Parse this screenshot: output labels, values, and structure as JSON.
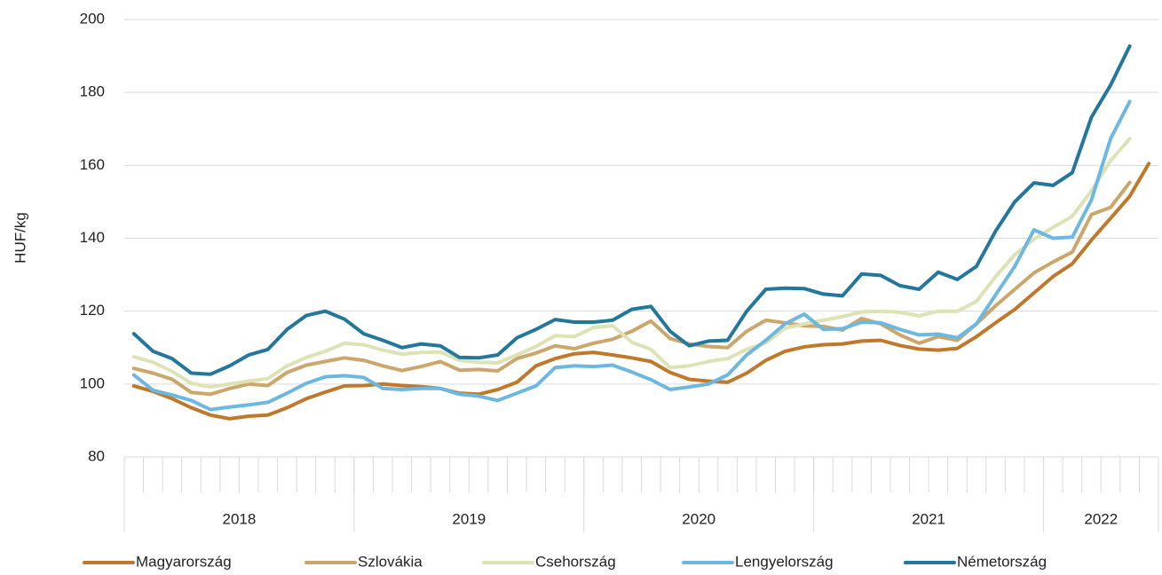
{
  "chart_data": {
    "type": "line",
    "y_label": "HUF/kg",
    "categories": [
      null,
      null,
      null,
      null,
      null,
      null,
      null,
      null,
      null,
      null,
      null,
      null,
      null,
      null,
      null,
      null,
      null,
      null,
      null,
      null,
      null,
      null,
      null,
      null,
      null,
      null,
      null,
      null,
      null,
      null,
      null,
      null,
      null,
      null,
      null,
      null,
      null,
      null,
      null,
      null,
      null,
      null,
      null,
      null,
      null,
      null,
      null,
      null,
      null,
      null,
      null,
      null,
      null,
      null
    ],
    "year_groups": [
      {
        "label": "2018",
        "count": 12
      },
      {
        "label": "2019",
        "count": 12
      },
      {
        "label": "2020",
        "count": 12
      },
      {
        "label": "2021",
        "count": 12
      },
      {
        "label": "2022",
        "count": 6
      }
    ],
    "ylim": [
      80,
      200
    ],
    "yticks": [
      80,
      100,
      120,
      140,
      160,
      180,
      200
    ],
    "grid": true,
    "legend": "bottom",
    "series": [
      {
        "name": "Magyarország",
        "color": "#c0782a",
        "values": [
          99.5,
          98,
          96,
          93.5,
          91.5,
          90.5,
          91.2,
          91.5,
          93.5,
          96,
          97.8,
          99.5,
          99.6,
          100,
          99.6,
          99.3,
          98.8,
          97.5,
          97.2,
          98.5,
          100.5,
          105,
          107,
          108.3,
          108.7,
          108,
          107.2,
          106.2,
          103.2,
          101.3,
          100.8,
          100.5,
          103,
          106.5,
          109,
          110.2,
          110.8,
          111,
          111.8,
          112,
          110.6,
          109.6,
          109.3,
          109.8,
          113,
          116.8,
          120.5,
          125,
          129.5,
          133,
          139.5,
          145.5,
          151.5,
          160.5
        ]
      },
      {
        "name": "Szlovákia",
        "color": "#cca66b",
        "values": [
          104.3,
          103,
          101.3,
          97.7,
          97.2,
          98.8,
          100,
          99.6,
          103.2,
          105.2,
          106.2,
          107.2,
          106.5,
          105,
          103.7,
          104.8,
          106.2,
          103.8,
          104,
          103.6,
          107,
          108.5,
          110.5,
          109.7,
          111.2,
          112.3,
          114.5,
          117.3,
          112.5,
          111,
          110.3,
          110,
          114.5,
          117.5,
          116.8,
          116,
          115.8,
          114.8,
          118,
          116.5,
          113.5,
          111.2,
          113,
          112,
          116.5,
          121.5,
          126,
          130.5,
          133.5,
          136.2,
          146.5,
          148.5,
          155.3,
          null
        ]
      },
      {
        "name": "Csehország",
        "color": "#dde3b4",
        "values": [
          107.5,
          106,
          103.5,
          100.2,
          99.2,
          100,
          100.8,
          101.5,
          105,
          107.3,
          109,
          111.2,
          110.8,
          109.3,
          108.2,
          108.7,
          108.8,
          106.5,
          106,
          105.8,
          108,
          110.3,
          113.3,
          113,
          115.5,
          116,
          111.5,
          109.5,
          104.5,
          105,
          106.2,
          107,
          109.5,
          111.3,
          115.3,
          116.5,
          117.5,
          118.5,
          119.8,
          120,
          119.7,
          118.7,
          120,
          120,
          122.7,
          129.5,
          135.5,
          139.7,
          143,
          146,
          153,
          161.3,
          167.3,
          null
        ]
      },
      {
        "name": "Lengyelország",
        "color": "#6db8e0",
        "values": [
          102.5,
          98.3,
          97,
          95.5,
          93,
          93.7,
          94.3,
          95,
          97.5,
          100.2,
          102,
          102.3,
          101.8,
          98.8,
          98.5,
          98.8,
          98.8,
          97.2,
          96.7,
          95.5,
          97.5,
          99.5,
          104.5,
          105,
          104.8,
          105.2,
          103.3,
          101.2,
          98.5,
          99.2,
          100,
          102.5,
          108,
          112,
          116.5,
          119.2,
          115,
          115.2,
          117,
          116.8,
          115,
          113.5,
          113.7,
          112.7,
          116.5,
          124.5,
          132.3,
          142.3,
          140,
          140.3,
          150.5,
          167.3,
          177.5,
          null
        ]
      },
      {
        "name": "Németország",
        "color": "#23779c",
        "values": [
          113.8,
          109,
          107,
          103,
          102.7,
          105,
          108,
          109.5,
          115,
          118.8,
          120,
          117.8,
          113.8,
          112,
          110,
          111,
          110.5,
          107.3,
          107.2,
          108,
          112.7,
          115,
          117.7,
          117,
          117,
          117.5,
          120.5,
          121.3,
          114.5,
          110.5,
          111.8,
          112,
          120,
          126,
          126.3,
          126.2,
          124.7,
          124.2,
          130.2,
          129.8,
          127,
          126,
          130.7,
          128.7,
          132.3,
          142,
          150,
          155.2,
          154.5,
          158,
          173.2,
          182,
          192.7,
          null
        ]
      }
    ]
  }
}
